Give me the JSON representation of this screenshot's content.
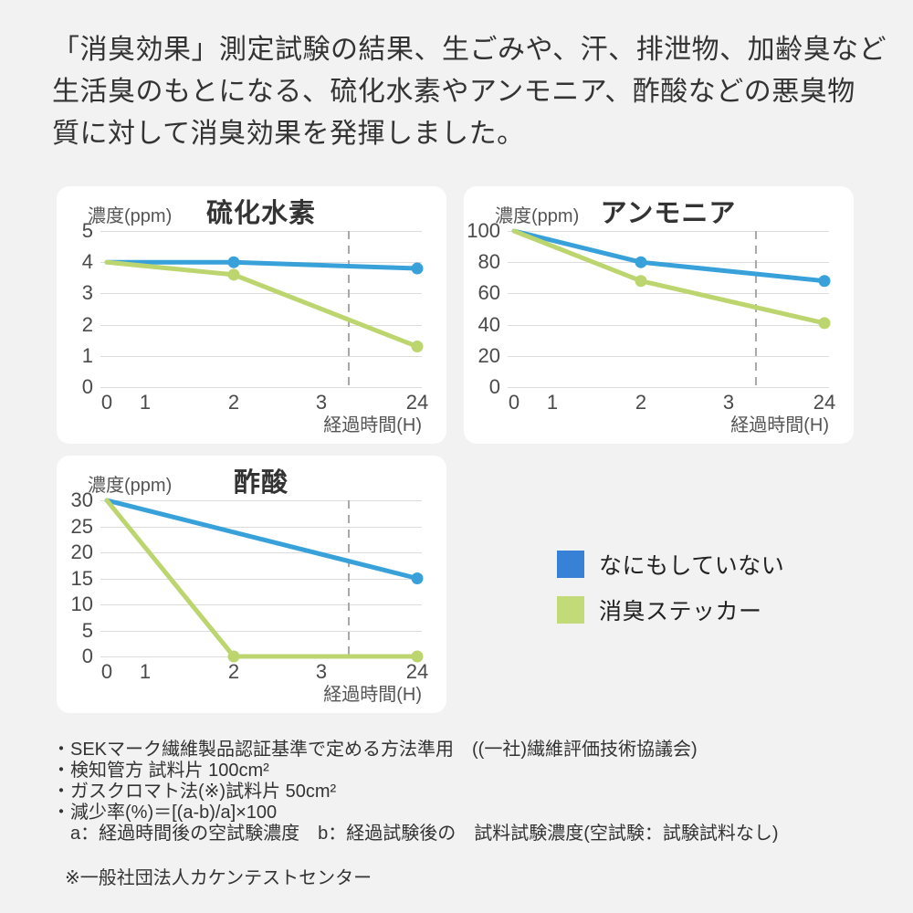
{
  "colors": {
    "page_background": "#f2f2f2",
    "card_background": "#ffffff",
    "gridline": "#dcdcdc",
    "dashed_guideline": "#a9a9a9",
    "blue_line": "#38a1da",
    "green_line": "#bdd56e",
    "legend_blue": "#3781d6",
    "legend_green": "#c3da79"
  },
  "header": {
    "lines": [
      "「消臭効果」測定試験の結果、生ごみや、汗、排泄物、加齢臭など",
      "生活臭のもとになる、硫化水素やアンモニア、酢酸などの悪臭物",
      "質に対して消臭効果を発揮しました。"
    ]
  },
  "chart_data": [
    {
      "type": "line",
      "title": "硫化水素",
      "y_axis_label": "濃度(ppm)",
      "x_axis_label": "経過時間(H)",
      "x_categories": [
        "0",
        "1",
        "2",
        "3",
        "24"
      ],
      "y_ticks": [
        "5",
        "4",
        "3",
        "2",
        "1",
        "0"
      ],
      "ylim": [
        0,
        5
      ],
      "grid": true,
      "dashed_guideline": true,
      "series": [
        {
          "name": "なにもしていない",
          "color": "#38a1da",
          "points": [
            {
              "x": "0",
              "v": 4.0,
              "dot": false
            },
            {
              "x": "2",
              "v": 4.0,
              "dot": true
            },
            {
              "x": "24",
              "v": 3.8,
              "dot": true
            }
          ]
        },
        {
          "name": "消臭ステッカー",
          "color": "#bdd56e",
          "points": [
            {
              "x": "0",
              "v": 4.0,
              "dot": false
            },
            {
              "x": "2",
              "v": 3.6,
              "dot": true
            },
            {
              "x": "24",
              "v": 1.3,
              "dot": true
            }
          ]
        }
      ]
    },
    {
      "type": "line",
      "title": "アンモニア",
      "y_axis_label": "濃度(ppm)",
      "x_axis_label": "経過時間(H)",
      "x_categories": [
        "0",
        "1",
        "2",
        "3",
        "24"
      ],
      "y_ticks": [
        "100",
        "80",
        "60",
        "40",
        "20",
        "0"
      ],
      "ylim": [
        0,
        100
      ],
      "grid": true,
      "dashed_guideline": true,
      "series": [
        {
          "name": "なにもしていない",
          "color": "#38a1da",
          "points": [
            {
              "x": "0",
              "v": 100,
              "dot": false
            },
            {
              "x": "2",
              "v": 80,
              "dot": true
            },
            {
              "x": "24",
              "v": 68,
              "dot": true
            }
          ]
        },
        {
          "name": "消臭ステッカー",
          "color": "#bdd56e",
          "points": [
            {
              "x": "0",
              "v": 100,
              "dot": false
            },
            {
              "x": "2",
              "v": 68,
              "dot": true
            },
            {
              "x": "24",
              "v": 41,
              "dot": true
            }
          ]
        }
      ]
    },
    {
      "type": "line",
      "title": "酢酸",
      "y_axis_label": "濃度(ppm)",
      "x_axis_label": "経過時間(H)",
      "x_categories": [
        "0",
        "1",
        "2",
        "3",
        "24"
      ],
      "y_ticks": [
        "30",
        "25",
        "20",
        "15",
        "10",
        "5",
        "0"
      ],
      "ylim": [
        0,
        30
      ],
      "grid": true,
      "dashed_guideline": true,
      "series": [
        {
          "name": "なにもしていない",
          "color": "#38a1da",
          "points": [
            {
              "x": "0",
              "v": 30,
              "dot": false
            },
            {
              "x": "24",
              "v": 15,
              "dot": true
            }
          ]
        },
        {
          "name": "消臭ステッカー",
          "color": "#bdd56e",
          "points": [
            {
              "x": "0",
              "v": 30,
              "dot": false
            },
            {
              "x": "2",
              "v": 0,
              "dot": true
            },
            {
              "x": "24",
              "v": 0,
              "dot": true
            }
          ]
        }
      ]
    }
  ],
  "legend": {
    "items": [
      {
        "label": "なにもしていない",
        "color": "#3781d6"
      },
      {
        "label": "消臭ステッカー",
        "color": "#c3da79"
      }
    ]
  },
  "footnotes": {
    "lines": [
      "・SEKマーク繊維製品認証基準で定める方法準用　((一社)繊維評価技術協議会)",
      "・検知管方 試料片 100cm²",
      "・ガスクロマト法(※)試料片 50cm²",
      "・減少率(%)＝[(a-b)/a]×100",
      "　a：経過時間後の空試験濃度　b：経過試験後の　試料試験濃度(空試験：試験試料なし)"
    ],
    "source": "※一般社団法人カケンテストセンター"
  }
}
